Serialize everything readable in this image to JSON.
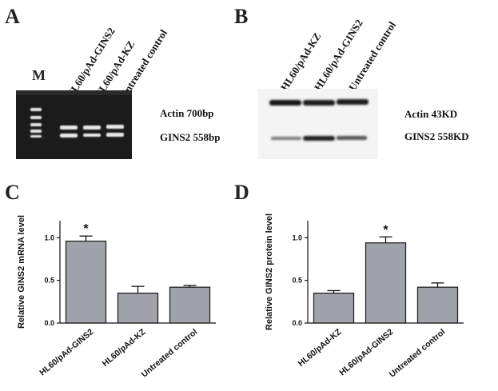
{
  "panels": {
    "a": {
      "letter": "A",
      "marker": "M",
      "lanes": [
        "HL60/pAd-GINS2",
        "HL60/pAd-KZ",
        "Untreated control"
      ],
      "bands": [
        "Actin 700bp",
        "GINS2  558bp"
      ]
    },
    "b": {
      "letter": "B",
      "lanes": [
        "HL60/pAd-KZ",
        "HL60/pAd-GINS2",
        "Untreated control"
      ],
      "bands": [
        "Actin 43KD",
        "GINS2  558KD"
      ]
    },
    "c": {
      "letter": "C"
    },
    "d": {
      "letter": "D"
    }
  },
  "chart_data": [
    {
      "type": "bar",
      "ylabel": "Relative GINS2 mRNA level",
      "ylim": [
        0,
        1.2
      ],
      "yticks": [
        "0.0",
        "0.5",
        "1.0"
      ],
      "categories": [
        "HL60/pAd-GINS2",
        "HL60/pAd-KZ",
        "Untreated control"
      ],
      "values": [
        0.96,
        0.35,
        0.42
      ],
      "errors": [
        0.06,
        0.08,
        0.02
      ],
      "significance": [
        "*",
        "",
        ""
      ],
      "bar_color": "#a0a3ab"
    },
    {
      "type": "bar",
      "ylabel": "Relative GINS2 protein level",
      "ylim": [
        0,
        1.2
      ],
      "yticks": [
        "0.0",
        "0.5",
        "1.0"
      ],
      "categories": [
        "HL60/pAd-KZ",
        "HL60/pAd-GINS2",
        "Untreated control"
      ],
      "values": [
        0.35,
        0.94,
        0.42
      ],
      "errors": [
        0.03,
        0.07,
        0.05
      ],
      "significance": [
        "",
        "*",
        ""
      ],
      "bar_color": "#a0a3ab"
    }
  ]
}
